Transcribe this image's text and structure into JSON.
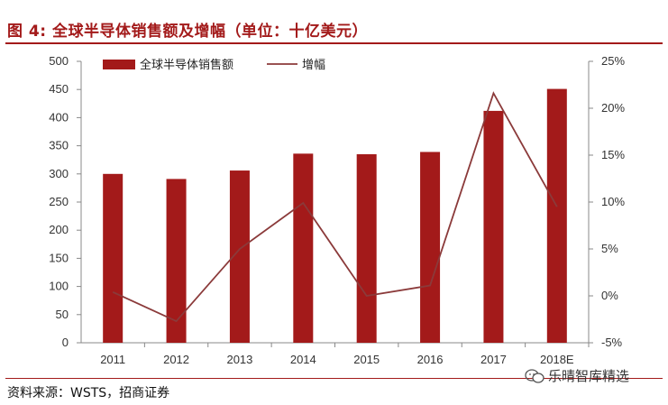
{
  "title": "图 4:  全球半导体销售额及增幅（单位：十亿美元）",
  "source": "资料来源：WSTS，招商证券",
  "watermark": "乐晴智库精选",
  "colors": {
    "bar": "#a31a1a",
    "line": "#8b3a3a",
    "title": "#a31a1a"
  },
  "chart_data": {
    "type": "bar",
    "categories": [
      "2011",
      "2012",
      "2013",
      "2014",
      "2015",
      "2016",
      "2017",
      "2018E"
    ],
    "series": [
      {
        "name": "全球半导体销售额",
        "type": "bar",
        "axis": "left",
        "values": [
          300,
          291,
          306,
          336,
          335,
          339,
          412,
          451
        ]
      },
      {
        "name": "增幅",
        "type": "line",
        "axis": "right",
        "values": [
          0.4,
          -2.7,
          5.0,
          9.9,
          0.0,
          1.1,
          21.6,
          9.5
        ]
      }
    ],
    "left_axis": {
      "ylim": [
        0,
        500
      ],
      "ticks": [
        "0",
        "50",
        "100",
        "150",
        "200",
        "250",
        "300",
        "350",
        "400",
        "450",
        "500"
      ]
    },
    "right_axis": {
      "ylim": [
        -5,
        25
      ],
      "ticks": [
        "-5%",
        "0%",
        "5%",
        "10%",
        "15%",
        "20%",
        "25%"
      ]
    },
    "grid": false,
    "legend_position": "top-left"
  }
}
